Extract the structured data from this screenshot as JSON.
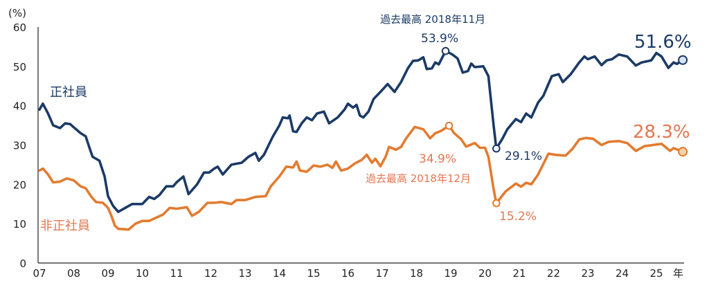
{
  "chart_data": {
    "type": "line",
    "title": "",
    "ylabel": "(%)",
    "xlabel": "年",
    "ylim": [
      0,
      60
    ],
    "xlim": [
      2007,
      2025.9
    ],
    "yticks": [
      "0",
      "10",
      "20",
      "30",
      "40",
      "50",
      "60"
    ],
    "xticks": [
      "07",
      "08",
      "09",
      "10",
      "11",
      "12",
      "13",
      "14",
      "15",
      "16",
      "17",
      "18",
      "19",
      "20",
      "21",
      "22",
      "23",
      "24",
      "25"
    ],
    "grid": false,
    "colors": {
      "regular": "#1b3a66",
      "nonregular": "#e37b2f",
      "nonregular_text": "#e2774f",
      "marker_fill_regular": "#d6e6f5",
      "marker_fill_nonregular": "#f6d2a8"
    },
    "series": [
      {
        "name": "正社員",
        "points": [
          [
            2007.0,
            39
          ],
          [
            2007.1,
            40.5
          ],
          [
            2007.25,
            38
          ],
          [
            2007.4,
            35
          ],
          [
            2007.6,
            34.3
          ],
          [
            2007.75,
            35.5
          ],
          [
            2007.9,
            35.3
          ],
          [
            2008.0,
            34.5
          ],
          [
            2008.2,
            33
          ],
          [
            2008.35,
            32.2
          ],
          [
            2008.45,
            29.5
          ],
          [
            2008.55,
            27
          ],
          [
            2008.75,
            26
          ],
          [
            2008.9,
            22
          ],
          [
            2009.0,
            17
          ],
          [
            2009.15,
            14.5
          ],
          [
            2009.3,
            13
          ],
          [
            2009.5,
            14
          ],
          [
            2009.7,
            15
          ],
          [
            2010.0,
            15
          ],
          [
            2010.2,
            16.8
          ],
          [
            2010.35,
            16.3
          ],
          [
            2010.5,
            17.3
          ],
          [
            2010.7,
            19.5
          ],
          [
            2010.9,
            19.5
          ],
          [
            2011.0,
            20.5
          ],
          [
            2011.2,
            22
          ],
          [
            2011.35,
            17.5
          ],
          [
            2011.6,
            20
          ],
          [
            2011.8,
            23
          ],
          [
            2011.95,
            23
          ],
          [
            2012.1,
            24
          ],
          [
            2012.2,
            24.5
          ],
          [
            2012.35,
            22.5
          ],
          [
            2012.6,
            25
          ],
          [
            2012.9,
            25.5
          ],
          [
            2013.1,
            27
          ],
          [
            2013.3,
            28
          ],
          [
            2013.4,
            26
          ],
          [
            2013.55,
            27.5
          ],
          [
            2013.8,
            32
          ],
          [
            2014.0,
            35
          ],
          [
            2014.1,
            37
          ],
          [
            2014.25,
            36.8
          ],
          [
            2014.3,
            37.5
          ],
          [
            2014.4,
            33.5
          ],
          [
            2014.5,
            33.3
          ],
          [
            2014.65,
            35.5
          ],
          [
            2014.8,
            37
          ],
          [
            2014.95,
            36.3
          ],
          [
            2015.1,
            38
          ],
          [
            2015.3,
            38.5
          ],
          [
            2015.45,
            35.5
          ],
          [
            2015.7,
            37
          ],
          [
            2015.9,
            39
          ],
          [
            2016.0,
            40.5
          ],
          [
            2016.15,
            39.5
          ],
          [
            2016.25,
            40.2
          ],
          [
            2016.35,
            37.5
          ],
          [
            2016.45,
            37
          ],
          [
            2016.6,
            38.5
          ],
          [
            2016.75,
            41.7
          ],
          [
            2016.95,
            43.5
          ],
          [
            2017.16,
            45.5
          ],
          [
            2017.36,
            43.5
          ],
          [
            2017.55,
            46
          ],
          [
            2017.75,
            49.5
          ],
          [
            2017.9,
            51.4
          ],
          [
            2018.05,
            51.5
          ],
          [
            2018.2,
            52.3
          ],
          [
            2018.3,
            49.3
          ],
          [
            2018.45,
            49.5
          ],
          [
            2018.55,
            51
          ],
          [
            2018.65,
            50.5
          ],
          [
            2018.85,
            53.9
          ],
          [
            2019.05,
            53
          ],
          [
            2019.2,
            52
          ],
          [
            2019.35,
            48.4
          ],
          [
            2019.5,
            48.8
          ],
          [
            2019.6,
            50.7
          ],
          [
            2019.7,
            49.8
          ],
          [
            2019.95,
            50
          ],
          [
            2020.1,
            47.5
          ],
          [
            2020.25,
            35
          ],
          [
            2020.33,
            29.1
          ],
          [
            2020.5,
            31.5
          ],
          [
            2020.65,
            34
          ],
          [
            2020.9,
            36.6
          ],
          [
            2021.05,
            35.8
          ],
          [
            2021.2,
            38
          ],
          [
            2021.35,
            37
          ],
          [
            2021.55,
            40.8
          ],
          [
            2021.7,
            42.5
          ],
          [
            2021.95,
            47.5
          ],
          [
            2022.15,
            48
          ],
          [
            2022.27,
            46
          ],
          [
            2022.5,
            48
          ],
          [
            2022.75,
            51
          ],
          [
            2022.9,
            52.5
          ],
          [
            2023.0,
            51.8
          ],
          [
            2023.2,
            52.5
          ],
          [
            2023.4,
            50.3
          ],
          [
            2023.55,
            51.5
          ],
          [
            2023.7,
            51.8
          ],
          [
            2023.9,
            53
          ],
          [
            2024.15,
            52.5
          ],
          [
            2024.4,
            50.2
          ],
          [
            2024.57,
            51
          ],
          [
            2024.85,
            51.5
          ],
          [
            2025.0,
            53.4
          ],
          [
            2025.15,
            52.5
          ],
          [
            2025.35,
            49.6
          ],
          [
            2025.5,
            51
          ],
          [
            2025.6,
            50.6
          ],
          [
            2025.77,
            51.6
          ]
        ]
      },
      {
        "name": "非正社員",
        "points": [
          [
            2007.0,
            23.5
          ],
          [
            2007.1,
            24
          ],
          [
            2007.25,
            22.5
          ],
          [
            2007.4,
            20.5
          ],
          [
            2007.6,
            20.7
          ],
          [
            2007.8,
            21.5
          ],
          [
            2008.0,
            21
          ],
          [
            2008.2,
            19.5
          ],
          [
            2008.35,
            19
          ],
          [
            2008.5,
            17
          ],
          [
            2008.65,
            15.5
          ],
          [
            2008.85,
            15.3
          ],
          [
            2009.0,
            14
          ],
          [
            2009.1,
            12
          ],
          [
            2009.2,
            9.5
          ],
          [
            2009.3,
            8.7
          ],
          [
            2009.6,
            8.5
          ],
          [
            2009.8,
            10
          ],
          [
            2010.0,
            10.7
          ],
          [
            2010.2,
            10.7
          ],
          [
            2010.4,
            11.5
          ],
          [
            2010.6,
            12.3
          ],
          [
            2010.8,
            14
          ],
          [
            2011.0,
            13.8
          ],
          [
            2011.3,
            14.2
          ],
          [
            2011.45,
            12
          ],
          [
            2011.65,
            13
          ],
          [
            2011.9,
            15.3
          ],
          [
            2012.1,
            15.3
          ],
          [
            2012.3,
            15.5
          ],
          [
            2012.6,
            15
          ],
          [
            2012.75,
            16
          ],
          [
            2013.0,
            16
          ],
          [
            2013.3,
            16.8
          ],
          [
            2013.6,
            17
          ],
          [
            2013.75,
            19.5
          ],
          [
            2014.0,
            22
          ],
          [
            2014.2,
            24.5
          ],
          [
            2014.4,
            24.3
          ],
          [
            2014.5,
            25.8
          ],
          [
            2014.6,
            23.5
          ],
          [
            2014.8,
            23.2
          ],
          [
            2015.0,
            24.8
          ],
          [
            2015.2,
            24.5
          ],
          [
            2015.4,
            25
          ],
          [
            2015.55,
            24.2
          ],
          [
            2015.65,
            25.8
          ],
          [
            2015.8,
            23.5
          ],
          [
            2016.0,
            24
          ],
          [
            2016.2,
            25.3
          ],
          [
            2016.4,
            26.2
          ],
          [
            2016.55,
            27.5
          ],
          [
            2016.7,
            25.5
          ],
          [
            2016.8,
            26.5
          ],
          [
            2016.95,
            24.6
          ],
          [
            2017.1,
            27
          ],
          [
            2017.2,
            29.5
          ],
          [
            2017.4,
            28.8
          ],
          [
            2017.55,
            29.5
          ],
          [
            2017.7,
            31.7
          ],
          [
            2017.95,
            34.6
          ],
          [
            2018.2,
            34
          ],
          [
            2018.4,
            31.7
          ],
          [
            2018.55,
            33
          ],
          [
            2018.7,
            33.5
          ],
          [
            2018.95,
            34.9
          ],
          [
            2019.1,
            33
          ],
          [
            2019.3,
            31.5
          ],
          [
            2019.45,
            29.6
          ],
          [
            2019.7,
            30.5
          ],
          [
            2019.85,
            29.3
          ],
          [
            2020.0,
            29.3
          ],
          [
            2020.1,
            27
          ],
          [
            2020.25,
            18.8
          ],
          [
            2020.33,
            15.2
          ],
          [
            2020.6,
            18.2
          ],
          [
            2020.9,
            20.2
          ],
          [
            2021.05,
            19.4
          ],
          [
            2021.2,
            20.4
          ],
          [
            2021.35,
            20
          ],
          [
            2021.55,
            22.5
          ],
          [
            2021.85,
            27.8
          ],
          [
            2022.05,
            27.5
          ],
          [
            2022.35,
            27.3
          ],
          [
            2022.55,
            29
          ],
          [
            2022.75,
            31.4
          ],
          [
            2022.95,
            31.8
          ],
          [
            2023.15,
            31.6
          ],
          [
            2023.4,
            30
          ],
          [
            2023.6,
            30.8
          ],
          [
            2023.9,
            31
          ],
          [
            2024.15,
            30.5
          ],
          [
            2024.4,
            28.5
          ],
          [
            2024.65,
            29.7
          ],
          [
            2024.9,
            30
          ],
          [
            2025.15,
            30.3
          ],
          [
            2025.4,
            28.5
          ],
          [
            2025.5,
            29.2
          ],
          [
            2025.77,
            28.3
          ]
        ]
      }
    ],
    "annotations": {
      "regular_label": "正社員",
      "nonregular_label": "非正社員",
      "regular_peak_caption": "過去最高 2018年11月",
      "regular_peak_value": "53.9%",
      "regular_trough_value": "29.1%",
      "regular_latest_value": "51.6%",
      "nonregular_peak_caption": "過去最高 2018年12月",
      "nonregular_peak_value": "34.9%",
      "nonregular_trough_value": "15.2%",
      "nonregular_latest_value": "28.3%"
    },
    "markers": [
      {
        "series": 0,
        "x": 2018.85,
        "y": 53.9
      },
      {
        "series": 0,
        "x": 2020.33,
        "y": 29.1
      },
      {
        "series": 0,
        "x": 2025.77,
        "y": 51.6
      },
      {
        "series": 1,
        "x": 2018.95,
        "y": 34.9
      },
      {
        "series": 1,
        "x": 2020.33,
        "y": 15.2
      },
      {
        "series": 1,
        "x": 2025.77,
        "y": 28.3
      }
    ]
  }
}
